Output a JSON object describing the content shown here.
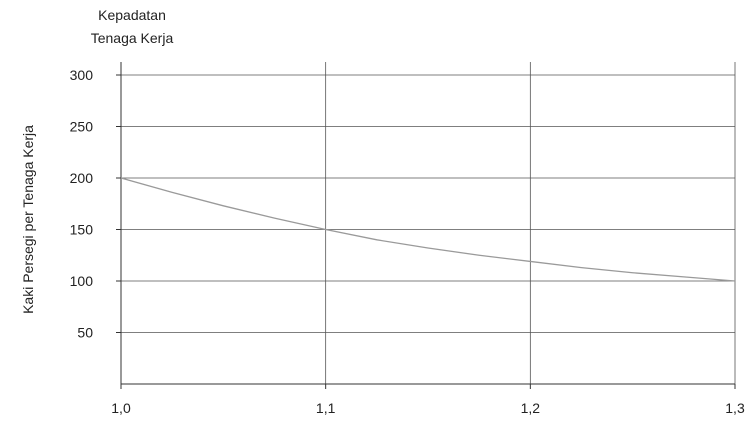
{
  "chart_data": {
    "type": "line",
    "title_lines": [
      "Kepadatan",
      "Tenaga Kerja"
    ],
    "xlabel": "",
    "ylabel": "Kaki Persegi per Tenaga Kerja",
    "x_ticks": [
      {
        "value": 1.0,
        "label": "1,0"
      },
      {
        "value": 1.1,
        "label": "1,1"
      },
      {
        "value": 1.2,
        "label": "1,2"
      },
      {
        "value": 1.3,
        "label": "1,3"
      }
    ],
    "y_ticks": [
      {
        "value": 50,
        "label": "50"
      },
      {
        "value": 100,
        "label": "100"
      },
      {
        "value": 150,
        "label": "150"
      },
      {
        "value": 200,
        "label": "200"
      },
      {
        "value": 250,
        "label": "250"
      },
      {
        "value": 300,
        "label": "300"
      }
    ],
    "xlim": [
      1.0,
      1.3
    ],
    "ylim": [
      0,
      300
    ],
    "grid": true,
    "series": [
      {
        "x": [
          1.0,
          1.025,
          1.05,
          1.075,
          1.1,
          1.125,
          1.15,
          1.175,
          1.2,
          1.225,
          1.25,
          1.275,
          1.3
        ],
        "y": [
          200,
          186,
          173,
          161,
          150,
          140,
          132,
          125,
          119,
          113,
          108,
          104,
          100
        ]
      }
    ],
    "colors": {
      "line": "#9a9a9a",
      "grid": "#555555",
      "axis": "#333333",
      "text": "#222222"
    }
  }
}
